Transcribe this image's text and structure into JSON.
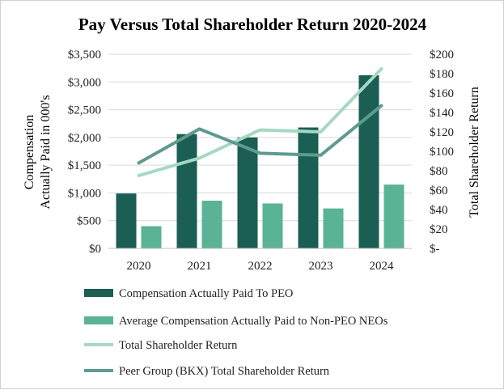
{
  "chart_data": {
    "type": "bar",
    "title": "Pay Versus Total Shareholder Return 2020-2024",
    "categories": [
      "2020",
      "2021",
      "2022",
      "2023",
      "2024"
    ],
    "ylabel_left_line1": "Compensation",
    "ylabel_left_line2": "Actually Paid in 000's",
    "ylabel_right": "Total Shareholder Return",
    "ylim_left": [
      0,
      3500
    ],
    "ylim_right": [
      0,
      200
    ],
    "left_ticks": [
      {
        "value": 0,
        "label": "$0"
      },
      {
        "value": 500,
        "label": "$500"
      },
      {
        "value": 1000,
        "label": "$1,000"
      },
      {
        "value": 1500,
        "label": "$1,500"
      },
      {
        "value": 2000,
        "label": "$2,000"
      },
      {
        "value": 2500,
        "label": "$2,500"
      },
      {
        "value": 3000,
        "label": "$3,000"
      },
      {
        "value": 3500,
        "label": "$3,500"
      }
    ],
    "right_ticks": [
      {
        "value": 0,
        "label": "$-"
      },
      {
        "value": 20,
        "label": "$20"
      },
      {
        "value": 40,
        "label": "$40"
      },
      {
        "value": 60,
        "label": "$60"
      },
      {
        "value": 80,
        "label": "$80"
      },
      {
        "value": 100,
        "label": "$100"
      },
      {
        "value": 120,
        "label": "$120"
      },
      {
        "value": 140,
        "label": "$140"
      },
      {
        "value": 160,
        "label": "$160"
      },
      {
        "value": 180,
        "label": "$180"
      },
      {
        "value": 200,
        "label": "$200"
      }
    ],
    "bar_series": [
      {
        "name": "Compensation Actually Paid To PEO",
        "color": "#1b5e54",
        "values": [
          990,
          2060,
          2000,
          2180,
          3120
        ]
      },
      {
        "name": "Average Compensation Actually Paid to Non-PEO NEOs",
        "color": "#5ab394",
        "values": [
          400,
          860,
          810,
          720,
          1150
        ]
      }
    ],
    "line_series": [
      {
        "name": "Total Shareholder Return",
        "color": "#a6d8c3",
        "axis": "right",
        "values": [
          75,
          93,
          122,
          120,
          185
        ]
      },
      {
        "name": "Peer Group (BKX) Total Shareholder Return",
        "color": "#5e9a8f",
        "axis": "right",
        "values": [
          88,
          123,
          98,
          96,
          147
        ]
      }
    ],
    "grid": true,
    "legend_position": "bottom"
  }
}
